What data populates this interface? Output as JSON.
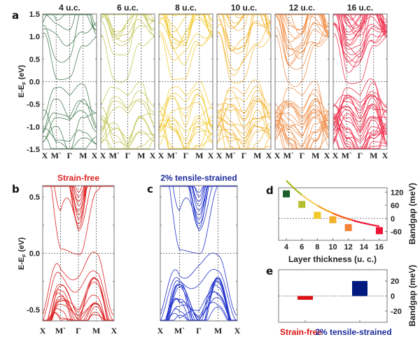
{
  "chart_data": [
    {
      "id": "a",
      "type": "line",
      "panel_label": "a",
      "ylabel": "E-E_F (eV)",
      "ylim": [
        -1.5,
        1.5
      ],
      "yticks": [
        "1.5",
        "1.0",
        "0.5",
        "0.0",
        "-0.5",
        "-1.0",
        "-1.5"
      ],
      "ytick_values": [
        1.5,
        1.0,
        0.5,
        0.0,
        -0.5,
        -1.0,
        -1.5
      ],
      "kpath": [
        "X",
        "M`",
        "Γ",
        "M",
        "X"
      ],
      "subplots": [
        {
          "title": "4 u.c.",
          "color": "#2e6b3a",
          "cbm_eV": 0.05,
          "vbm_eV": -0.06,
          "bands": 14
        },
        {
          "title": "6 u.c.",
          "color": "#b9bf3a",
          "cbm_eV": 0.04,
          "vbm_eV": -0.02,
          "bands": 20
        },
        {
          "title": "8 u.c.",
          "color": "#f0c419",
          "cbm_eV": 0.03,
          "vbm_eV": 0.0,
          "bands": 26
        },
        {
          "title": "10 u.c.",
          "color": "#f3b021",
          "cbm_eV": 0.0,
          "vbm_eV": 0.0,
          "bands": 32
        },
        {
          "title": "12 u.c.",
          "color": "#f08030",
          "cbm_eV": -0.02,
          "vbm_eV": 0.0,
          "bands": 38
        },
        {
          "title": "16 u.c.",
          "color": "#ee1133",
          "cbm_eV": -0.04,
          "vbm_eV": 0.01,
          "bands": 48
        }
      ]
    },
    {
      "id": "b",
      "type": "line",
      "panel_label": "b",
      "title": "Strain-free",
      "color": "#dd2222",
      "ylabel": "E-E_F (eV)",
      "ylim": [
        -0.6,
        0.6
      ],
      "yticks": [
        "0.5",
        "0.0",
        "-0.5"
      ],
      "ytick_values": [
        0.5,
        0.0,
        -0.5
      ],
      "kpath": [
        "X",
        "M`",
        "Γ",
        "M",
        "X"
      ]
    },
    {
      "id": "c",
      "type": "line",
      "panel_label": "c",
      "title": "2% tensile-strained",
      "color": "#2233cc",
      "title_color": "#1a2a99",
      "ylim": [
        -0.6,
        0.6
      ],
      "kpath": [
        "X",
        "M`",
        "Γ",
        "M",
        "X"
      ]
    },
    {
      "id": "d",
      "type": "line",
      "panel_label": "d",
      "xlabel": "Layer thickness (u. c.)",
      "ylabel": "Bandgap (meV)",
      "xlim": [
        3,
        17
      ],
      "ylim": [
        -100,
        140
      ],
      "xticks": [
        4,
        6,
        8,
        10,
        12,
        14,
        16
      ],
      "yticks": [
        120,
        60,
        0,
        -60
      ],
      "x": [
        4,
        6,
        8,
        10,
        12,
        16
      ],
      "y": [
        112,
        64,
        14,
        -6,
        -42,
        -56
      ],
      "marker_colors": [
        "#1b5e2a",
        "#b5be2f",
        "#f0c82a",
        "#f3ae2a",
        "#f5823a",
        "#ee1133"
      ],
      "fit_colors": [
        "#a8b81e",
        "#f6d060",
        "#f8a020",
        "#f85a10",
        "#ee1133"
      ]
    },
    {
      "id": "e",
      "type": "bar",
      "panel_label": "e",
      "ylabel": "Bandgap (meV)",
      "ylim": [
        -35,
        35
      ],
      "yticks": [
        20,
        0,
        -20
      ],
      "categories": [
        "Strain-free",
        "2% tensile-strained"
      ],
      "values": [
        -5,
        20
      ],
      "colors": [
        "#dd1111",
        "#001a80"
      ],
      "category_colors": [
        "#dd1111",
        "#1a2a99"
      ]
    }
  ]
}
